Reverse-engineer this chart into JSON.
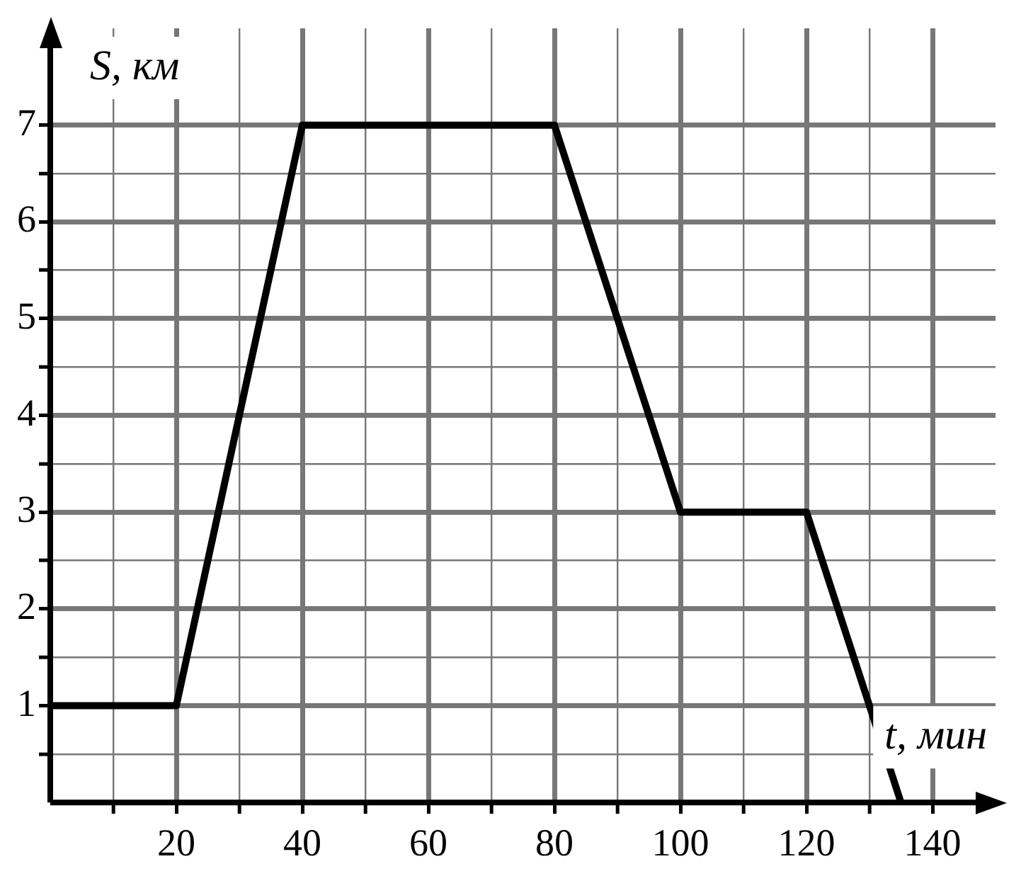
{
  "chart_data": {
    "type": "line",
    "xlabel": "t, мин",
    "ylabel": "S, км",
    "x": [
      0,
      20,
      40,
      80,
      100,
      120,
      135
    ],
    "series": [
      {
        "color": "#000000",
        "values": [
          1,
          1,
          7,
          7,
          3,
          3,
          0
        ]
      }
    ],
    "xlim": [
      0,
      150
    ],
    "ylim": [
      0,
      8
    ],
    "xticks": [
      {
        "value": 10,
        "label": null
      },
      20,
      {
        "value": 30,
        "label": null
      },
      40,
      {
        "value": 50,
        "label": null
      },
      60,
      {
        "value": 70,
        "label": null
      },
      80,
      {
        "value": 90,
        "label": null
      },
      100,
      {
        "value": 110,
        "label": null
      },
      120,
      {
        "value": 130,
        "label": null
      },
      140
    ],
    "yticks": [
      {
        "value": 0.5,
        "label": null
      },
      1,
      {
        "value": 1.5,
        "label": null
      },
      2,
      {
        "value": 2.5,
        "label": null
      },
      3,
      {
        "value": 3.5,
        "label": null
      },
      4,
      {
        "value": 4.5,
        "label": null
      },
      5,
      {
        "value": 5.5,
        "label": null
      },
      6,
      {
        "value": 6.5,
        "label": null
      },
      7
    ],
    "grid": true,
    "legend": false,
    "marker": "none",
    "line_style": "solid"
  }
}
